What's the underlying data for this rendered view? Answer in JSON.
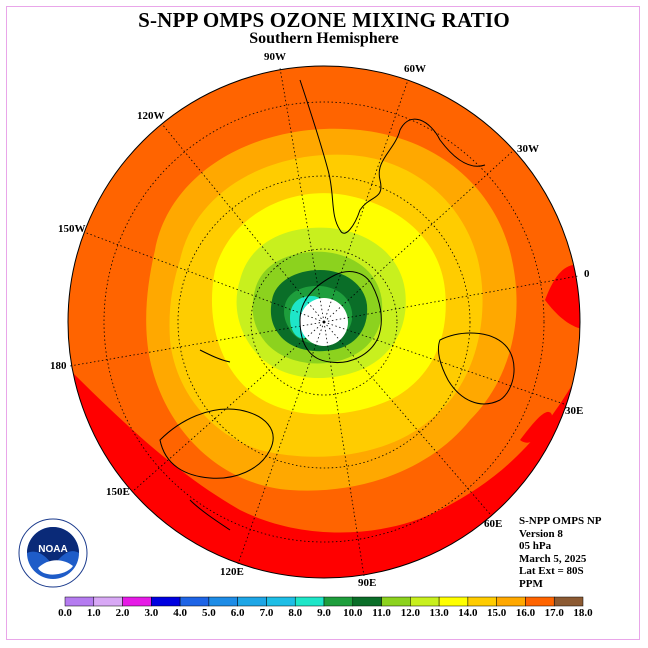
{
  "header": {
    "title": "S-NPP OMPS OZONE MIXING RATIO",
    "subtitle": "Southern Hemisphere"
  },
  "map": {
    "projection": "south polar stereographic",
    "longitude_labels": [
      "90W",
      "60W",
      "30W",
      "0",
      "30E",
      "60E",
      "90E",
      "120E",
      "150E",
      "180",
      "150W",
      "120W"
    ],
    "colors": {
      "ocean_fill_outer": "#ff6600",
      "land_outline": "#000000"
    }
  },
  "info": {
    "lines": [
      "S-NPP OMPS NP",
      "Version 8",
      "05 hPa",
      "March 5, 2025",
      "Lat Ext = 80S",
      "PPM"
    ]
  },
  "logo": {
    "text": "NOAA",
    "icon": "noaa-logo-icon"
  },
  "colorbar": {
    "ticks": [
      "0.0",
      "1.0",
      "2.0",
      "3.0",
      "4.0",
      "5.0",
      "6.0",
      "7.0",
      "8.0",
      "9.0",
      "10.0",
      "11.0",
      "12.0",
      "13.0",
      "14.0",
      "15.0",
      "16.0",
      "17.0",
      "18.0"
    ],
    "colors": [
      "#b57cf0",
      "#d8a8f5",
      "#e61ae6",
      "#0000e0",
      "#1e64e6",
      "#1e8ce6",
      "#1ea6e6",
      "#1ebee6",
      "#1ee6c8",
      "#1e9e3c",
      "#0a6e28",
      "#8cd21e",
      "#c8f01e",
      "#ffff00",
      "#ffcc00",
      "#ffa800",
      "#ff6400",
      "#ff0000",
      "#8c5a32"
    ]
  }
}
